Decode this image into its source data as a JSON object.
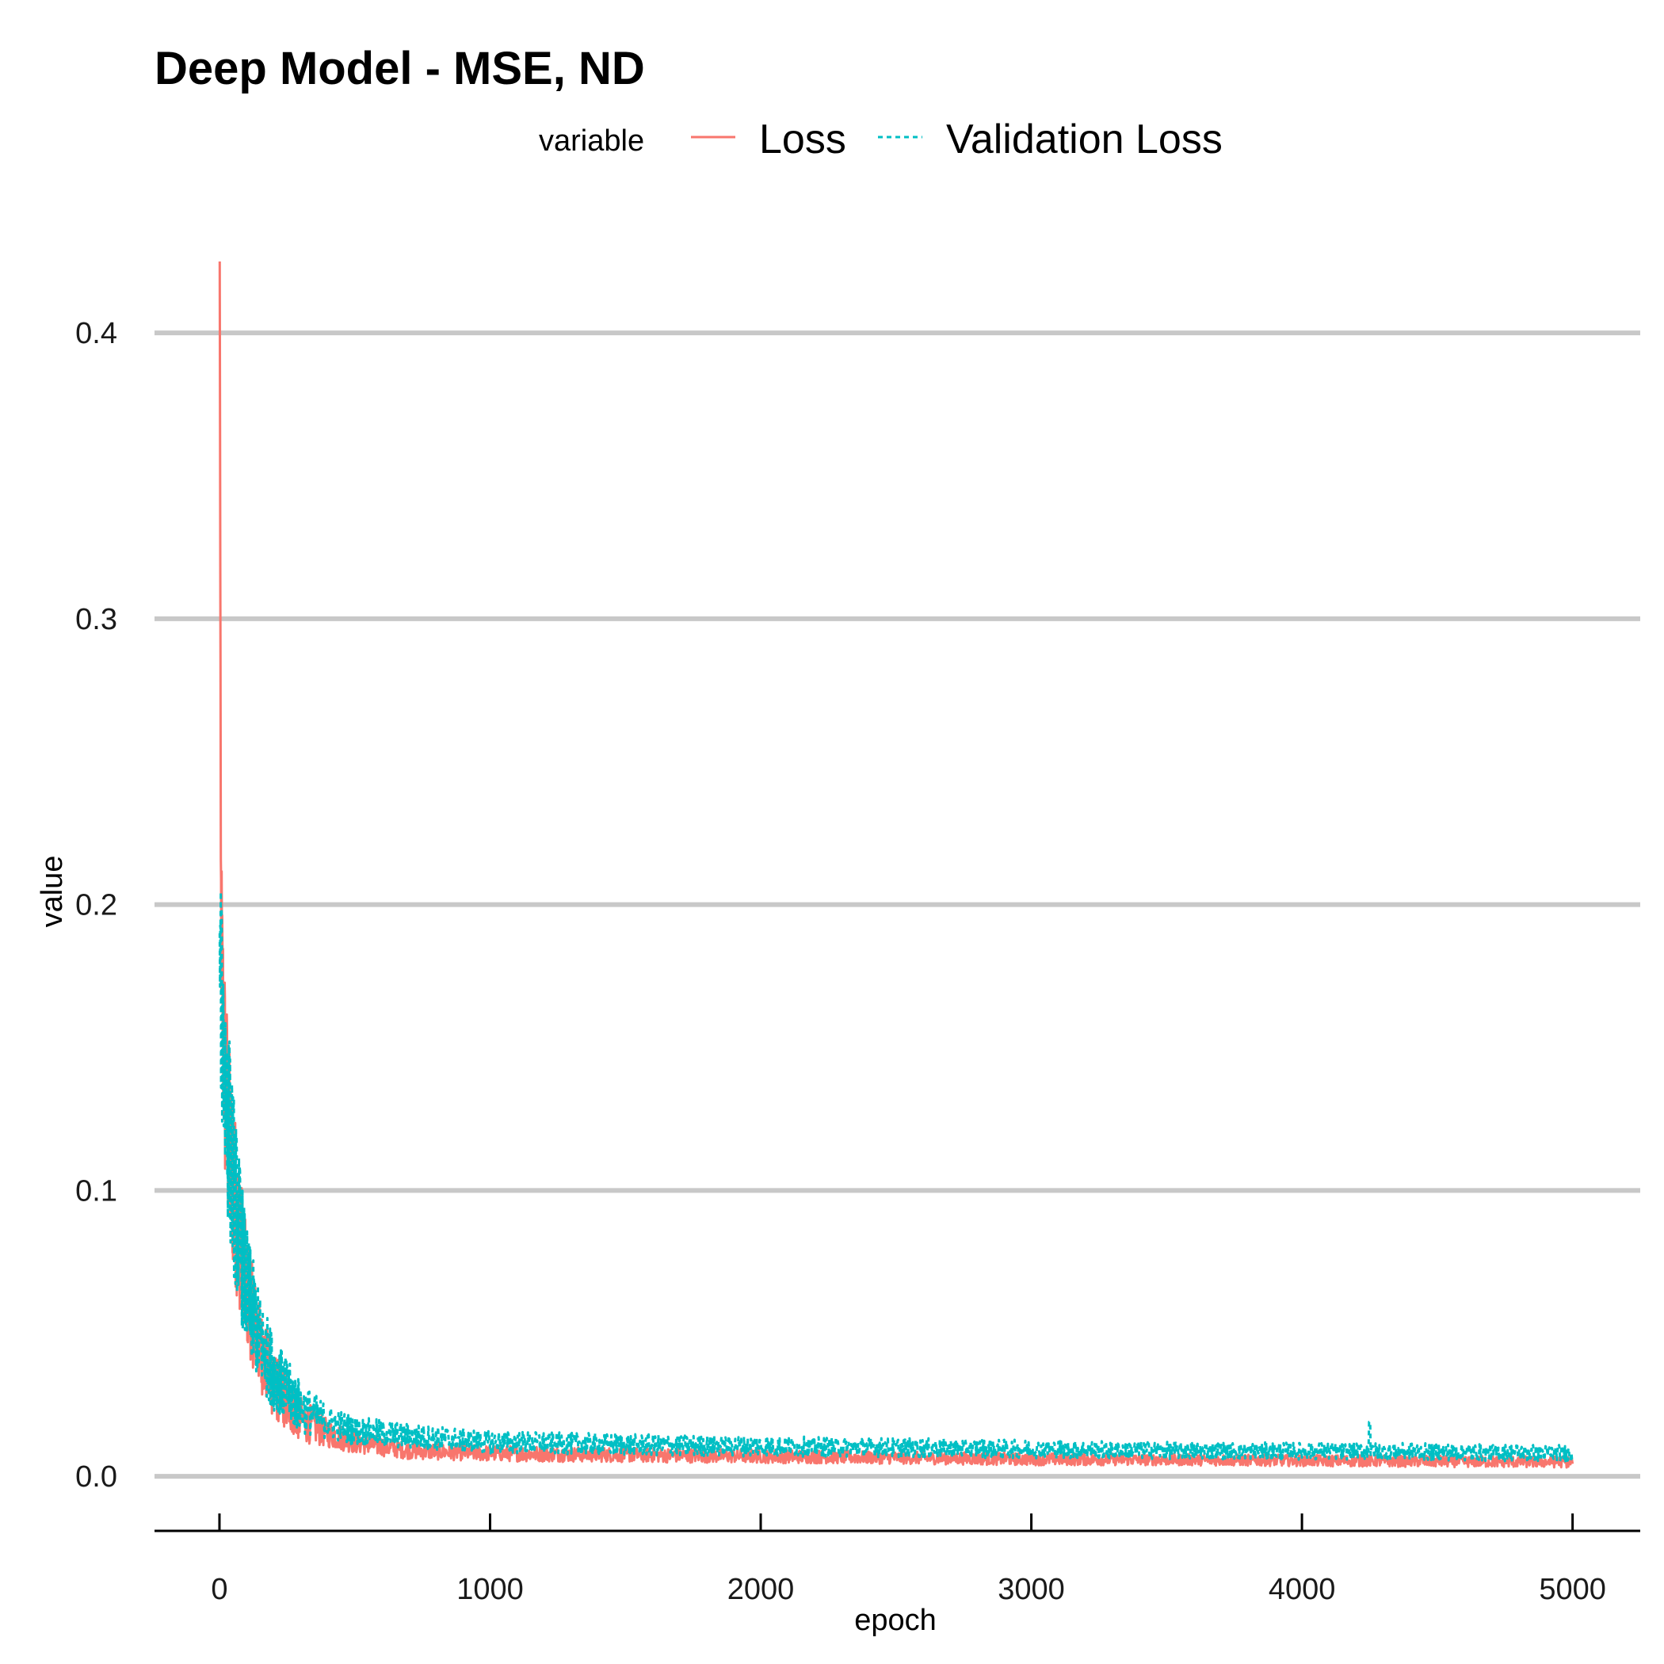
{
  "chart_data": {
    "type": "line",
    "title": "Deep Model - MSE, ND",
    "xlabel": "epoch",
    "ylabel": "value",
    "xlim": [
      -240,
      5250
    ],
    "ylim": [
      -0.018,
      0.425
    ],
    "x_ticks": [
      0,
      1000,
      2000,
      3000,
      4000,
      5000
    ],
    "x_tick_labels": [
      "0",
      "1000",
      "2000",
      "3000",
      "4000",
      "5000"
    ],
    "y_ticks": [
      0.0,
      0.1,
      0.2,
      0.3,
      0.4
    ],
    "y_tick_labels": [
      "0.0",
      "0.1",
      "0.2",
      "0.3",
      "0.4"
    ],
    "grid": "horizontal major",
    "legend": {
      "title": "variable",
      "position": "top",
      "entries": [
        {
          "label": "Loss",
          "color": "#F8766D",
          "dash": "solid"
        },
        {
          "label": "Validation Loss",
          "color": "#00BFC4",
          "dash": "dashed"
        }
      ]
    },
    "series": [
      {
        "name": "Loss",
        "color": "#F8766D",
        "dash": "solid",
        "x": [
          1,
          5,
          10,
          20,
          40,
          60,
          80,
          100,
          150,
          200,
          300,
          400,
          500,
          700,
          1000,
          1500,
          2000,
          2500,
          3000,
          3500,
          4000,
          4500,
          5000
        ],
        "y": [
          0.425,
          0.205,
          0.17,
          0.14,
          0.11,
          0.095,
          0.08,
          0.065,
          0.045,
          0.032,
          0.02,
          0.015,
          0.012,
          0.009,
          0.008,
          0.0075,
          0.007,
          0.0065,
          0.006,
          0.0058,
          0.0055,
          0.0052,
          0.005
        ],
        "noise": [
          0,
          0.03,
          0.04,
          0.04,
          0.035,
          0.03,
          0.025,
          0.02,
          0.015,
          0.012,
          0.008,
          0.005,
          0.004,
          0.003,
          0.0028,
          0.0026,
          0.0024,
          0.0022,
          0.0022,
          0.002,
          0.002,
          0.002,
          0.002
        ]
      },
      {
        "name": "Validation Loss",
        "color": "#00BFC4",
        "dash": "dashed",
        "x": [
          1,
          5,
          10,
          20,
          40,
          60,
          80,
          100,
          150,
          200,
          300,
          400,
          500,
          700,
          1000,
          1500,
          2000,
          2500,
          3000,
          3500,
          4000,
          4250,
          4500,
          5000
        ],
        "y": [
          0.19,
          0.17,
          0.16,
          0.14,
          0.115,
          0.095,
          0.08,
          0.065,
          0.048,
          0.036,
          0.024,
          0.019,
          0.016,
          0.014,
          0.012,
          0.011,
          0.0105,
          0.01,
          0.0095,
          0.009,
          0.0088,
          0.0088,
          0.0085,
          0.008
        ],
        "noise": [
          0.01,
          0.035,
          0.04,
          0.04,
          0.035,
          0.03,
          0.026,
          0.022,
          0.016,
          0.013,
          0.009,
          0.006,
          0.005,
          0.0045,
          0.004,
          0.0038,
          0.0036,
          0.0034,
          0.0032,
          0.003,
          0.003,
          0.003,
          0.003,
          0.003
        ]
      }
    ]
  }
}
